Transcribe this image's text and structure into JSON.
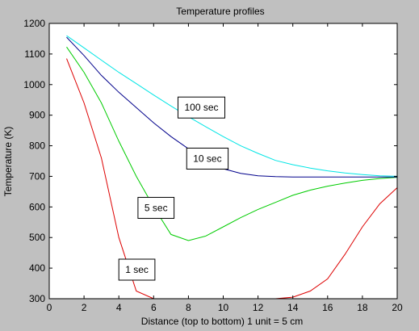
{
  "chart_data": {
    "type": "line",
    "title": "Temperature profiles",
    "xlabel": "Distance (top to bottom) 1 unit = 5 cm",
    "ylabel": "Temperature (K)",
    "xlim": [
      0,
      20
    ],
    "ylim": [
      300,
      1200
    ],
    "xticks": [
      0,
      2,
      4,
      6,
      8,
      10,
      12,
      14,
      16,
      18,
      20
    ],
    "yticks": [
      300,
      400,
      500,
      600,
      700,
      800,
      900,
      1000,
      1100,
      1200
    ],
    "grid": false,
    "background": "#c0c0c0",
    "plot_background": "#ffffff",
    "series": [
      {
        "name": "1 sec",
        "color": "#dd0000",
        "x": [
          1,
          2,
          3,
          4,
          5,
          6,
          7,
          8,
          9,
          10,
          11,
          12,
          13,
          14,
          15,
          16,
          17,
          18,
          19,
          20
        ],
        "y": [
          1085,
          940,
          760,
          500,
          325,
          300,
          300,
          300,
          300,
          300,
          300,
          300,
          300,
          305,
          325,
          365,
          445,
          535,
          610,
          663
        ]
      },
      {
        "name": "5 sec",
        "color": "#00cc00",
        "x": [
          1,
          2,
          3,
          4,
          5,
          6,
          7,
          8,
          9,
          10,
          11,
          12,
          13,
          14,
          15,
          16,
          17,
          18,
          19,
          20
        ],
        "y": [
          1123,
          1040,
          940,
          815,
          700,
          600,
          510,
          490,
          505,
          535,
          565,
          592,
          615,
          638,
          655,
          668,
          678,
          687,
          693,
          697
        ]
      },
      {
        "name": "10 sec",
        "color": "#00008b",
        "x": [
          1,
          2,
          3,
          4,
          5,
          6,
          7,
          8,
          9,
          10,
          11,
          12,
          13,
          14,
          15,
          16,
          17,
          18,
          19,
          20
        ],
        "y": [
          1155,
          1095,
          1030,
          975,
          925,
          875,
          830,
          790,
          755,
          725,
          710,
          702,
          699,
          698,
          698,
          698,
          698,
          698,
          698,
          698
        ]
      },
      {
        "name": "100 sec",
        "color": "#00e5e5",
        "x": [
          1,
          2,
          3,
          4,
          5,
          6,
          7,
          8,
          9,
          10,
          11,
          12,
          13,
          14,
          15,
          16,
          17,
          18,
          19,
          20
        ],
        "y": [
          1160,
          1120,
          1080,
          1040,
          1003,
          966,
          930,
          895,
          862,
          830,
          800,
          775,
          752,
          738,
          727,
          718,
          711,
          706,
          702,
          700
        ]
      }
    ],
    "annotations": [
      {
        "text": "100 sec",
        "x": 7.4,
        "y": 925
      },
      {
        "text": "10 sec",
        "x": 7.9,
        "y": 758
      },
      {
        "text": "5 sec",
        "x": 5.1,
        "y": 597
      },
      {
        "text": "1 sec",
        "x": 4.0,
        "y": 395
      }
    ]
  }
}
